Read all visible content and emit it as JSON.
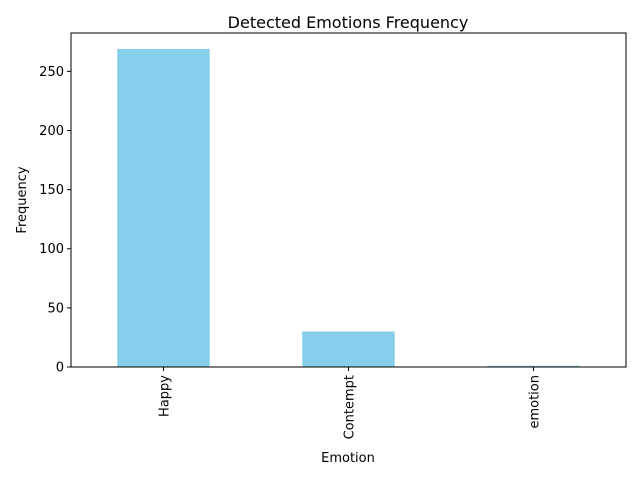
{
  "chart_data": {
    "type": "bar",
    "title": "Detected Emotions Frequency",
    "xlabel": "Emotion",
    "ylabel": "Frequency",
    "categories": [
      "Happy",
      "Contempt",
      "emotion"
    ],
    "values": [
      269,
      30,
      1
    ],
    "ylim": [
      0,
      282.45
    ],
    "yticks": [
      0,
      50,
      100,
      150,
      200,
      250
    ],
    "bar_color": "#87CEEB",
    "grid": false,
    "legend": "none",
    "x_tick_rotation": "vertical"
  }
}
